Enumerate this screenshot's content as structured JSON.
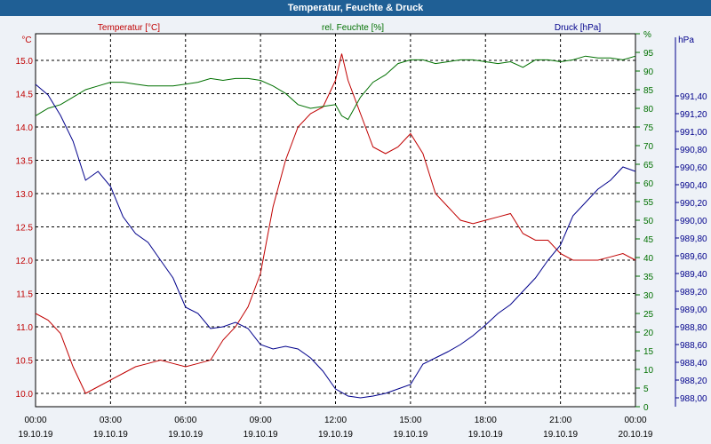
{
  "window": {
    "title": "Temperatur, Feuchte & Druck"
  },
  "colors": {
    "temperature": "#c00000",
    "humidity": "#007000",
    "pressure": "#00008b",
    "title_bg": "#1f5f95",
    "plot_bg": "#ffffff"
  },
  "chart_data": {
    "type": "line",
    "title": "Temperatur, Feuchte & Druck",
    "grid": true,
    "x": {
      "range": [
        "19.10.19 00:00",
        "20.10.19 00:00"
      ],
      "ticks": [
        {
          "time": "00:00",
          "date": "19.10.19"
        },
        {
          "time": "03:00",
          "date": "19.10.19"
        },
        {
          "time": "06:00",
          "date": "19.10.19"
        },
        {
          "time": "09:00",
          "date": "19.10.19"
        },
        {
          "time": "12:00",
          "date": "19.10.19"
        },
        {
          "time": "15:00",
          "date": "19.10.19"
        },
        {
          "time": "18:00",
          "date": "19.10.19"
        },
        {
          "time": "21:00",
          "date": "19.10.19"
        },
        {
          "time": "00:00",
          "date": "20.10.19"
        }
      ]
    },
    "axes": {
      "temperature": {
        "unit": "°C",
        "range": [
          9.8,
          15.4
        ],
        "ticks": [
          "10.0",
          "10.5",
          "11.0",
          "11.5",
          "12.0",
          "12.5",
          "13.0",
          "13.5",
          "14.0",
          "14.5",
          "15.0"
        ]
      },
      "humidity": {
        "unit": "%",
        "range": [
          0,
          100
        ],
        "ticks": [
          "0",
          "5",
          "10",
          "15",
          "20",
          "25",
          "30",
          "35",
          "40",
          "45",
          "50",
          "55",
          "60",
          "65",
          "70",
          "75",
          "80",
          "85",
          "90",
          "95",
          "%"
        ]
      },
      "pressure": {
        "unit": "hPa",
        "range": [
          987.9,
          992.1
        ],
        "ticks": [
          "988,00",
          "988,20",
          "988,40",
          "988,60",
          "988,80",
          "989,00",
          "989,20",
          "989,40",
          "989,60",
          "989,80",
          "990,00",
          "990,20",
          "990,40",
          "990,60",
          "990,80",
          "991,00",
          "991,20",
          "991,40",
          "hPa"
        ]
      }
    },
    "series": [
      {
        "name": "Temperatur [°C]",
        "axis": "temperature",
        "hours": [
          0,
          0.5,
          1,
          1.5,
          2,
          2.5,
          3,
          3.5,
          4,
          4.5,
          5,
          5.5,
          6,
          6.5,
          7,
          7.5,
          8,
          8.5,
          9,
          9.5,
          10,
          10.5,
          11,
          11.5,
          12,
          12.25,
          12.5,
          13,
          13.5,
          14,
          14.5,
          15,
          15.5,
          16,
          16.5,
          17,
          17.5,
          18,
          18.5,
          19,
          19.5,
          20,
          20.5,
          21,
          21.5,
          22,
          22.5,
          23,
          23.5,
          24
        ],
        "values": [
          11.2,
          11.1,
          10.9,
          10.4,
          10.0,
          10.1,
          10.2,
          10.3,
          10.4,
          10.45,
          10.5,
          10.45,
          10.4,
          10.45,
          10.5,
          10.8,
          11.0,
          11.3,
          11.8,
          12.8,
          13.5,
          14.0,
          14.2,
          14.3,
          14.7,
          15.1,
          14.7,
          14.2,
          13.7,
          13.6,
          13.7,
          13.9,
          13.6,
          13.0,
          12.8,
          12.6,
          12.55,
          12.6,
          12.65,
          12.7,
          12.4,
          12.3,
          12.3,
          12.1,
          12.0,
          12.0,
          12.0,
          12.05,
          12.1,
          12.0
        ]
      },
      {
        "name": "rel. Feuchte [%]",
        "axis": "humidity",
        "hours": [
          0,
          0.5,
          1,
          1.5,
          2,
          2.5,
          3,
          3.5,
          4,
          4.5,
          5,
          5.5,
          6,
          6.5,
          7,
          7.5,
          8,
          8.5,
          9,
          9.5,
          10,
          10.5,
          11,
          11.5,
          12,
          12.25,
          12.5,
          13,
          13.5,
          14,
          14.5,
          15,
          15.5,
          16,
          16.5,
          17,
          17.5,
          18,
          18.5,
          19,
          19.5,
          20,
          20.5,
          21,
          21.5,
          22,
          22.5,
          23,
          23.5,
          24
        ],
        "values": [
          78,
          80,
          81,
          83,
          85,
          86,
          87,
          87,
          86.5,
          86,
          86,
          86,
          86.5,
          87,
          88,
          87.5,
          88,
          88,
          87.5,
          86,
          84,
          81,
          80,
          80.5,
          81,
          78,
          77,
          83,
          87,
          89,
          92,
          93,
          93,
          92,
          92.5,
          93,
          93,
          92.5,
          92,
          92.5,
          91,
          93,
          93,
          92.5,
          93,
          94,
          93.5,
          93.5,
          93,
          94
        ]
      },
      {
        "name": "Druck [hPa]",
        "axis": "pressure",
        "hours": [
          0,
          0.5,
          1,
          1.5,
          2,
          2.5,
          3,
          3.5,
          4,
          4.5,
          5,
          5.5,
          6,
          6.5,
          7,
          7.5,
          8,
          8.5,
          9,
          9.5,
          10,
          10.5,
          11,
          11.5,
          12,
          12.5,
          13,
          13.5,
          14,
          14.5,
          15,
          15.5,
          16,
          16.5,
          17,
          17.5,
          18,
          18.5,
          19,
          19.5,
          20,
          20.5,
          21,
          21.5,
          22,
          22.5,
          23,
          23.5,
          24
        ],
        "values": [
          991.53,
          991.41,
          991.18,
          990.89,
          990.45,
          990.55,
          990.38,
          990.04,
          989.85,
          989.75,
          989.55,
          989.35,
          989.02,
          988.95,
          988.78,
          988.8,
          988.85,
          988.78,
          988.6,
          988.55,
          988.58,
          988.55,
          988.45,
          988.3,
          988.1,
          988.02,
          988.0,
          988.02,
          988.05,
          988.1,
          988.15,
          988.38,
          988.45,
          988.52,
          988.6,
          988.7,
          988.82,
          988.95,
          989.05,
          989.2,
          989.35,
          989.55,
          989.72,
          990.05,
          990.2,
          990.35,
          990.45,
          990.6,
          990.55
        ]
      }
    ]
  }
}
